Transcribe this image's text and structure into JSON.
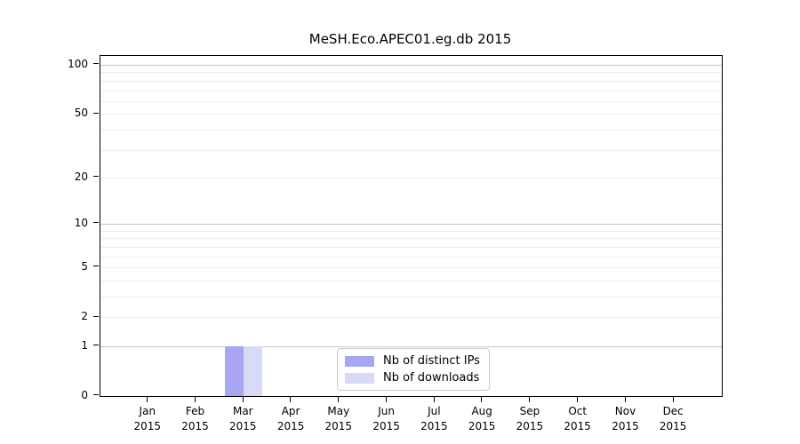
{
  "chart_data": {
    "type": "bar",
    "title": "MeSH.Eco.APEC01.eg.db 2015",
    "categories": [
      "Jan",
      "Feb",
      "Mar",
      "Apr",
      "May",
      "Jun",
      "Jul",
      "Aug",
      "Sep",
      "Oct",
      "Nov",
      "Dec"
    ],
    "year_label": "2015",
    "series": [
      {
        "name": "Nb of distinct IPs",
        "color": "#a6a6f2",
        "values": [
          0,
          0,
          1,
          0,
          0,
          0,
          0,
          0,
          0,
          0,
          0,
          0
        ]
      },
      {
        "name": "Nb of downloads",
        "color": "#d9d9f8",
        "values": [
          0,
          0,
          1,
          0,
          0,
          0,
          0,
          0,
          0,
          0,
          0,
          0
        ]
      }
    ],
    "xlabel": "",
    "ylabel": "",
    "yscale": "log1p",
    "yticks": [
      0,
      1,
      2,
      5,
      10,
      20,
      50,
      100
    ],
    "major_grid_values": [
      1,
      10,
      100
    ],
    "minor_grid_values": [
      2,
      3,
      4,
      5,
      6,
      7,
      8,
      9,
      20,
      30,
      40,
      50,
      60,
      70,
      80,
      90
    ],
    "ylim": [
      0,
      115
    ],
    "grid": "horizontal",
    "legend_position": "bottom-center-inside",
    "colors": {
      "background": "#ffffff",
      "axis": "#000000",
      "major_grid": "#c7c7c7",
      "minor_grid": "#ededed",
      "legend_border": "#c9c9c9",
      "text": "#000000"
    }
  }
}
